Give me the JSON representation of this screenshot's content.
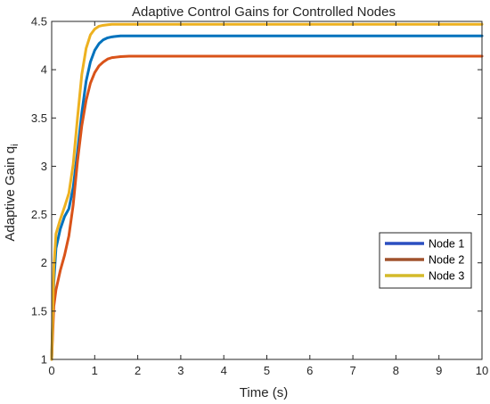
{
  "chart_data": {
    "type": "line",
    "title": "Adaptive Control Gains for Controlled Nodes",
    "xlabel": "Time (s)",
    "ylabel": "Adaptive Gain q",
    "ylabel_subscript": "i",
    "xlim": [
      0,
      10
    ],
    "ylim": [
      1,
      4.5
    ],
    "xticks": [
      "0",
      "1",
      "2",
      "3",
      "4",
      "5",
      "6",
      "7",
      "8",
      "9",
      "10"
    ],
    "yticks": [
      "1",
      "1.5",
      "2",
      "2.5",
      "3",
      "3.5",
      "4",
      "4.5"
    ],
    "grid": false,
    "legend_position": "right",
    "x": [
      0,
      0.05,
      0.1,
      0.2,
      0.3,
      0.4,
      0.5,
      0.6,
      0.7,
      0.8,
      0.9,
      1.0,
      1.1,
      1.2,
      1.3,
      1.4,
      1.5,
      1.6,
      1.8,
      2.0,
      2.5,
      3,
      4,
      5,
      6,
      7,
      8,
      9,
      10
    ],
    "series": [
      {
        "name": "Node 1",
        "color": "#0072BD",
        "values": [
          1.0,
          1.8,
          2.15,
          2.35,
          2.48,
          2.56,
          2.78,
          3.15,
          3.55,
          3.88,
          4.08,
          4.2,
          4.27,
          4.31,
          4.33,
          4.34,
          4.345,
          4.35,
          4.35,
          4.35,
          4.35,
          4.35,
          4.35,
          4.35,
          4.35,
          4.35,
          4.35,
          4.35,
          4.35
        ]
      },
      {
        "name": "Node 2",
        "color": "#D95319",
        "values": [
          1.0,
          1.55,
          1.72,
          1.92,
          2.08,
          2.28,
          2.6,
          3.05,
          3.42,
          3.68,
          3.86,
          3.97,
          4.04,
          4.08,
          4.11,
          4.125,
          4.13,
          4.135,
          4.14,
          4.14,
          4.14,
          4.14,
          4.14,
          4.14,
          4.14,
          4.14,
          4.14,
          4.14,
          4.14
        ]
      },
      {
        "name": "Node 3",
        "color": "#EDB120",
        "values": [
          1.0,
          1.95,
          2.3,
          2.45,
          2.58,
          2.72,
          3.02,
          3.5,
          3.95,
          4.22,
          4.36,
          4.42,
          4.45,
          4.46,
          4.465,
          4.47,
          4.47,
          4.47,
          4.47,
          4.47,
          4.47,
          4.47,
          4.47,
          4.47,
          4.47,
          4.47,
          4.47,
          4.47,
          4.47
        ]
      }
    ],
    "legend_line_colors": [
      "#2B4FC0",
      "#A0522D",
      "#D4BA2A"
    ]
  }
}
